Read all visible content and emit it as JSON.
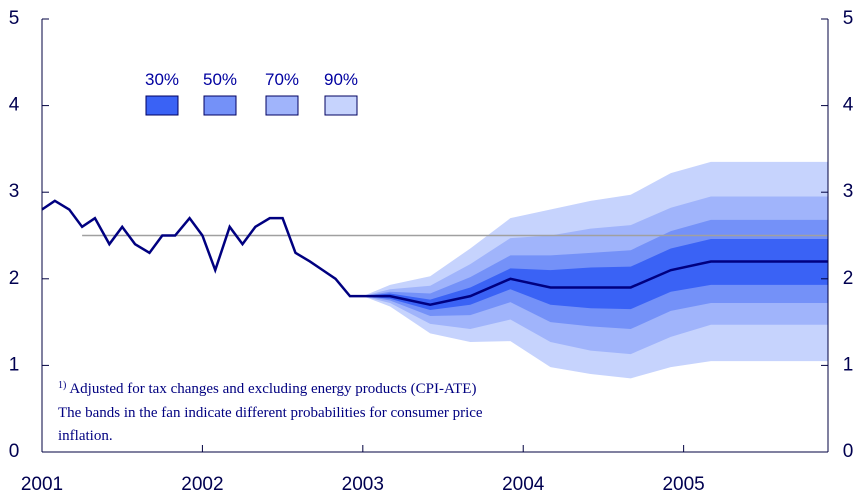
{
  "chart_data": {
    "type": "fan",
    "xlim": [
      2001,
      2005.9
    ],
    "xticks": [
      2001,
      2002,
      2003,
      2004,
      2005
    ],
    "ylim": [
      0,
      5
    ],
    "yticks": [
      0,
      1,
      2,
      3,
      4,
      5
    ],
    "line": {
      "color": "#000080",
      "x": [
        2001,
        2001.08,
        2001.17,
        2001.25,
        2001.33,
        2001.42,
        2001.5,
        2001.58,
        2001.67,
        2001.75,
        2001.83,
        2001.92,
        2002,
        2002.08,
        2002.17,
        2002.25,
        2002.33,
        2002.42,
        2002.5,
        2002.58,
        2002.67,
        2002.75,
        2002.83,
        2002.92,
        2003,
        2003.17,
        2003.42,
        2003.67,
        2003.92,
        2004.17,
        2004.42,
        2004.67,
        2004.92,
        2005.17,
        2005.9
      ],
      "values": [
        2.8,
        2.9,
        2.8,
        2.6,
        2.7,
        2.4,
        2.6,
        2.4,
        2.3,
        2.5,
        2.5,
        2.7,
        2.5,
        2.1,
        2.6,
        2.4,
        2.6,
        2.7,
        2.7,
        2.3,
        2.2,
        2.1,
        2.0,
        1.8,
        1.8,
        1.8,
        1.7,
        1.8,
        2.0,
        1.9,
        1.9,
        1.9,
        2.1,
        2.2,
        2.2
      ]
    },
    "reference": {
      "value": 2.5,
      "x": [
        2001.25,
        2005.9
      ],
      "color": "#a0a0a0"
    },
    "band_x": [
      2003,
      2003.17,
      2003.42,
      2003.67,
      2003.92,
      2004.17,
      2004.42,
      2004.67,
      2004.92,
      2005.17,
      2005.9
    ],
    "bands": [
      {
        "name": "30%",
        "color": "#3a62f5",
        "lower": [
          1.8,
          1.77,
          1.64,
          1.7,
          1.88,
          1.7,
          1.66,
          1.65,
          1.85,
          1.93,
          1.93
        ],
        "upper": [
          1.8,
          1.83,
          1.76,
          1.9,
          2.12,
          2.1,
          2.13,
          2.14,
          2.35,
          2.46,
          2.46
        ]
      },
      {
        "name": "50%",
        "color": "#7491f8",
        "lower": [
          1.8,
          1.75,
          1.57,
          1.58,
          1.73,
          1.5,
          1.45,
          1.42,
          1.63,
          1.72,
          1.72
        ],
        "upper": [
          1.8,
          1.85,
          1.83,
          2.02,
          2.27,
          2.27,
          2.3,
          2.33,
          2.55,
          2.68,
          2.68
        ]
      },
      {
        "name": "70%",
        "color": "#a0b4fb",
        "lower": [
          1.8,
          1.72,
          1.48,
          1.42,
          1.53,
          1.27,
          1.17,
          1.13,
          1.33,
          1.47,
          1.47
        ],
        "upper": [
          1.8,
          1.88,
          1.92,
          2.17,
          2.47,
          2.5,
          2.58,
          2.62,
          2.82,
          2.95,
          2.95
        ]
      },
      {
        "name": "90%",
        "color": "#c6d3fd",
        "lower": [
          1.8,
          1.68,
          1.37,
          1.27,
          1.28,
          0.98,
          0.9,
          0.85,
          0.98,
          1.05,
          1.05
        ],
        "upper": [
          1.8,
          1.93,
          2.03,
          2.35,
          2.7,
          2.8,
          2.9,
          2.97,
          3.22,
          3.35,
          3.35
        ]
      }
    ],
    "footnote_mark": "1)",
    "notes": [
      "Adjusted for tax changes and excluding energy products (CPI-ATE)",
      "The bands in the fan indicate different probabilities for consumer price",
      "inflation."
    ]
  }
}
